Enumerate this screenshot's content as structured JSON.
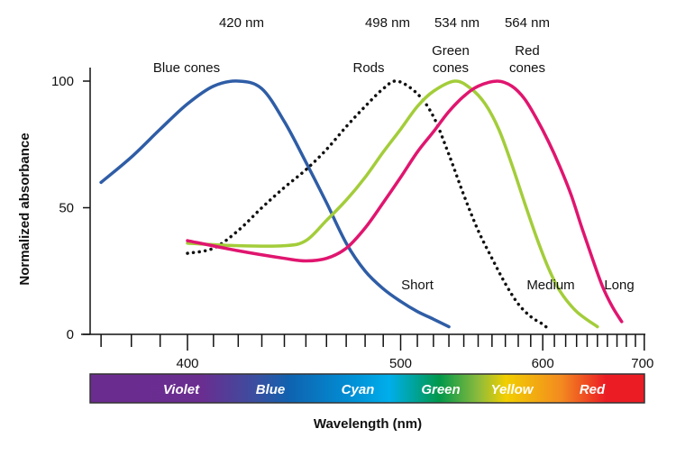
{
  "chart_data": {
    "type": "line",
    "title": "",
    "xlabel": "Wavelength (nm)",
    "ylabel": "Normalized absorbance",
    "x_scale": "reciprocal",
    "xlim": [
      367,
      715
    ],
    "ylim": [
      0,
      100
    ],
    "x_tick_labels": [
      "400",
      "500",
      "600",
      "700"
    ],
    "x_major_ticks": [
      400,
      500,
      600,
      700
    ],
    "x_minor_step": 10,
    "y_ticks": [
      0,
      50,
      100
    ],
    "y_tick_labels": [
      "0",
      "50",
      "100"
    ],
    "peak_labels": [
      "420 nm",
      "498 nm",
      "534 nm",
      "564 nm"
    ],
    "series": [
      {
        "name": "Blue cones",
        "name_lines": [
          "Blue cones"
        ],
        "end_label": "Short",
        "peak": 420,
        "color": "#2f5da6",
        "dashed": false,
        "points": [
          [
            370,
            60
          ],
          [
            380,
            70
          ],
          [
            390,
            81
          ],
          [
            400,
            91
          ],
          [
            410,
            98
          ],
          [
            420,
            100
          ],
          [
            430,
            97
          ],
          [
            440,
            84
          ],
          [
            450,
            68
          ],
          [
            460,
            52
          ],
          [
            470,
            36
          ],
          [
            480,
            25
          ],
          [
            490,
            18
          ],
          [
            500,
            13
          ],
          [
            510,
            9
          ],
          [
            520,
            6
          ],
          [
            530,
            3
          ]
        ]
      },
      {
        "name": "Rods",
        "name_lines": [
          "Rods"
        ],
        "end_label": "",
        "peak": 498,
        "color": "#111111",
        "dashed": true,
        "points": [
          [
            400,
            32
          ],
          [
            410,
            34
          ],
          [
            420,
            41
          ],
          [
            430,
            50
          ],
          [
            440,
            58
          ],
          [
            450,
            65
          ],
          [
            460,
            73
          ],
          [
            470,
            82
          ],
          [
            480,
            90
          ],
          [
            490,
            97
          ],
          [
            498,
            100
          ],
          [
            510,
            95
          ],
          [
            520,
            86
          ],
          [
            530,
            71
          ],
          [
            540,
            55
          ],
          [
            550,
            41
          ],
          [
            560,
            30
          ],
          [
            570,
            20
          ],
          [
            580,
            12
          ],
          [
            590,
            7
          ],
          [
            600,
            4
          ],
          [
            605,
            2
          ]
        ]
      },
      {
        "name": "Green cones",
        "name_lines": [
          "Green",
          "cones"
        ],
        "end_label": "Medium",
        "peak": 534,
        "color": "#a3cd3a",
        "dashed": false,
        "points": [
          [
            400,
            36
          ],
          [
            420,
            35
          ],
          [
            440,
            35
          ],
          [
            450,
            37
          ],
          [
            460,
            45
          ],
          [
            470,
            53
          ],
          [
            480,
            62
          ],
          [
            490,
            72
          ],
          [
            500,
            81
          ],
          [
            510,
            90
          ],
          [
            520,
            96
          ],
          [
            534,
            100
          ],
          [
            545,
            97
          ],
          [
            555,
            91
          ],
          [
            565,
            81
          ],
          [
            575,
            67
          ],
          [
            585,
            52
          ],
          [
            595,
            38
          ],
          [
            605,
            26
          ],
          [
            615,
            17
          ],
          [
            630,
            9
          ],
          [
            650,
            3
          ]
        ]
      },
      {
        "name": "Red cones",
        "name_lines": [
          "Red",
          "cones"
        ],
        "end_label": "Long",
        "peak": 564,
        "color": "#e0156f",
        "dashed": false,
        "points": [
          [
            400,
            37
          ],
          [
            420,
            33
          ],
          [
            440,
            30
          ],
          [
            450,
            29
          ],
          [
            460,
            30
          ],
          [
            470,
            34
          ],
          [
            480,
            42
          ],
          [
            490,
            52
          ],
          [
            500,
            62
          ],
          [
            510,
            72
          ],
          [
            520,
            80
          ],
          [
            530,
            88
          ],
          [
            540,
            94
          ],
          [
            550,
            98
          ],
          [
            564,
            100
          ],
          [
            575,
            98
          ],
          [
            585,
            93
          ],
          [
            595,
            85
          ],
          [
            605,
            76
          ],
          [
            615,
            66
          ],
          [
            625,
            55
          ],
          [
            635,
            42
          ],
          [
            645,
            30
          ],
          [
            655,
            19
          ],
          [
            665,
            11
          ],
          [
            675,
            5
          ]
        ]
      }
    ],
    "spectrum_bands": [
      "Violet",
      "Blue",
      "Cyan",
      "Green",
      "Yellow",
      "Red"
    ],
    "grid": false,
    "legend": "none"
  }
}
